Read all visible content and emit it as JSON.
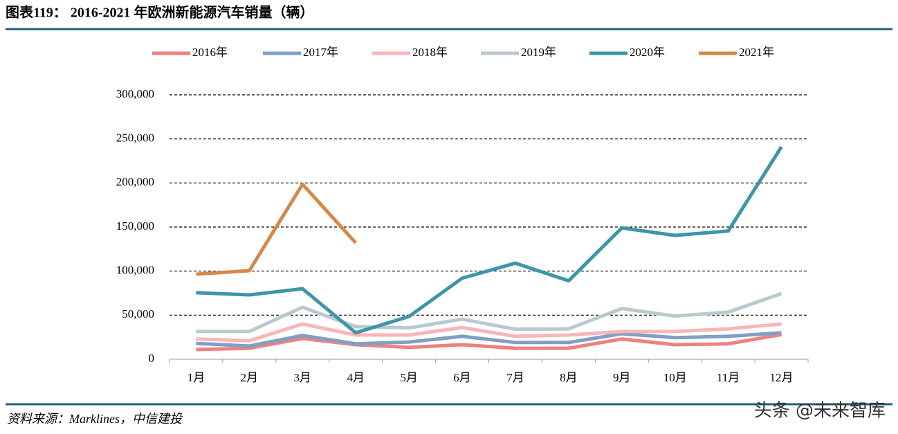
{
  "chart_data": {
    "type": "line",
    "title": "图表119：  2016-2021 年欧洲新能源汽车销量（辆）",
    "source": "资料来源：Marklines，中信建投",
    "watermark": "头条 @未来智库",
    "categories": [
      "1月",
      "2月",
      "3月",
      "4月",
      "5月",
      "6月",
      "7月",
      "8月",
      "9月",
      "10月",
      "11月",
      "12月"
    ],
    "series": [
      {
        "name": "2016年",
        "color": "#f08080",
        "values": [
          11000,
          12500,
          23500,
          16500,
          13500,
          16500,
          12500,
          12500,
          23000,
          16500,
          17500,
          28000
        ]
      },
      {
        "name": "2017年",
        "color": "#7f9fc4",
        "values": [
          18000,
          15000,
          27000,
          17500,
          19500,
          26000,
          19000,
          19000,
          29000,
          24500,
          26000,
          30000
        ]
      },
      {
        "name": "2018年",
        "color": "#f7b6b8",
        "values": [
          23000,
          21000,
          40000,
          27500,
          27500,
          36000,
          26000,
          27500,
          31500,
          31500,
          34500,
          40000
        ]
      },
      {
        "name": "2019年",
        "color": "#b8c9cf",
        "values": [
          31500,
          31500,
          59000,
          37000,
          35500,
          45500,
          34000,
          34500,
          57500,
          49000,
          53500,
          74500
        ]
      },
      {
        "name": "2020年",
        "color": "#3e95a8",
        "values": [
          75500,
          73000,
          80000,
          30000,
          48500,
          92000,
          109000,
          89000,
          149000,
          140500,
          145500,
          241000
        ]
      },
      {
        "name": "2021年",
        "color": "#d4884a",
        "values": [
          96500,
          100500,
          198500,
          132000,
          null,
          null,
          null,
          null,
          null,
          null,
          null,
          null
        ]
      }
    ],
    "ylim": [
      0,
      300000
    ],
    "yticks": [
      0,
      {
        "value": 50000,
        "label": "50,000"
      },
      {
        "value": 100000,
        "label": "100,000"
      },
      {
        "value": 150000,
        "label": "150,000"
      },
      {
        "value": 200000,
        "label": "200,000"
      },
      {
        "value": 250000,
        "label": "250,000"
      },
      {
        "value": 300000,
        "label": "300,000"
      }
    ],
    "grid": true,
    "legend": "top"
  }
}
